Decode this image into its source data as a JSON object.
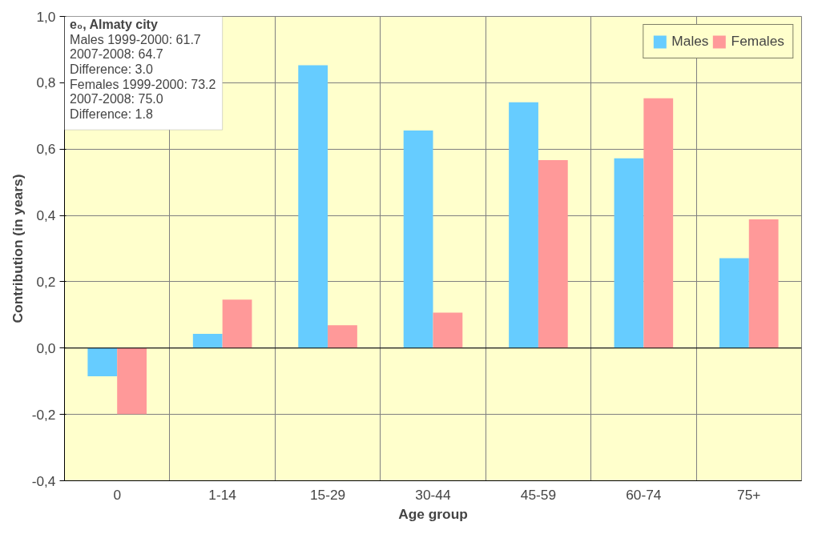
{
  "chart_data": {
    "type": "bar",
    "xlabel": "Age group",
    "ylabel": "Contribution (in years)",
    "categories": [
      "0",
      "1-14",
      "15-29",
      "30-44",
      "45-59",
      "60-74",
      "75+"
    ],
    "series": [
      {
        "name": "Males",
        "color": "#66ccff",
        "values": [
          -0.085,
          0.043,
          0.853,
          0.656,
          0.741,
          0.572,
          0.271
        ]
      },
      {
        "name": "Females",
        "color": "#ff9999",
        "values": [
          -0.199,
          0.146,
          0.069,
          0.107,
          0.567,
          0.753,
          0.388
        ]
      }
    ],
    "ylim": [
      -0.4,
      1.0
    ],
    "yticks": [
      {
        "value": -0.4,
        "label": "-0,4"
      },
      {
        "value": -0.2,
        "label": "-0,2"
      },
      {
        "value": 0,
        "label": "0,0"
      },
      {
        "value": 0.2,
        "label": "0,2"
      },
      {
        "value": 0.4,
        "label": "0,4"
      },
      {
        "value": 0.6,
        "label": "0,6"
      },
      {
        "value": 0.8,
        "label": "0,8"
      },
      {
        "value": 1.0,
        "label": "1,0"
      }
    ],
    "grid": true,
    "legend": "top right",
    "annotations": [
      "e₀, Almaty city",
      "Males 1999-2000: 61.7",
      "2007-2008: 64.7",
      "Difference: 3.0",
      "Females 1999-2000: 73.2",
      "2007-2008: 75.0",
      "Difference: 1.8"
    ]
  }
}
